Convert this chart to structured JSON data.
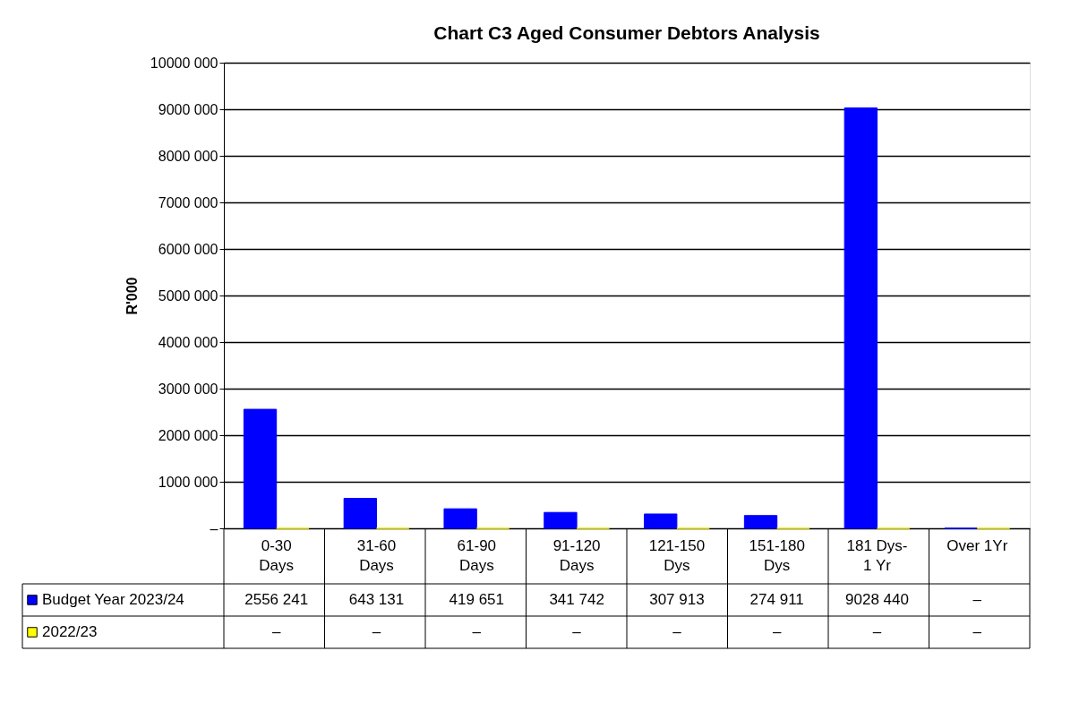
{
  "chart_data": {
    "type": "bar",
    "title": "Chart C3 Aged Consumer Debtors Analysis",
    "ylabel": "R'000",
    "categories": [
      "0-30\nDays",
      "31-60\nDays",
      "61-90\nDays",
      "91-120\nDays",
      "121-150\nDys",
      "151-180\nDys",
      "181 Dys-\n1 Yr",
      "Over 1Yr"
    ],
    "series": [
      {
        "name": "Budget Year 2023/24",
        "color": "#0000ff",
        "values": [
          2556241,
          643131,
          419651,
          341742,
          307913,
          274911,
          9028440,
          0
        ],
        "value_labels": [
          "2556 241",
          "643 131",
          "419 651",
          "341 742",
          "307 913",
          "274 911",
          "9028 440",
          "–"
        ]
      },
      {
        "name": "2022/23",
        "color": "#ffff00",
        "values": [
          0,
          0,
          0,
          0,
          0,
          0,
          0,
          0
        ],
        "value_labels": [
          "–",
          "–",
          "–",
          "–",
          "–",
          "–",
          "–",
          "–"
        ]
      }
    ],
    "ylim": [
      0,
      10000000
    ],
    "yticks": [
      {
        "value": 0,
        "label": "–"
      },
      {
        "value": 1000000,
        "label": "1000 000"
      },
      {
        "value": 2000000,
        "label": "2000 000"
      },
      {
        "value": 3000000,
        "label": "3000 000"
      },
      {
        "value": 4000000,
        "label": "4000 000"
      },
      {
        "value": 5000000,
        "label": "5000 000"
      },
      {
        "value": 6000000,
        "label": "6000 000"
      },
      {
        "value": 7000000,
        "label": "7000 000"
      },
      {
        "value": 8000000,
        "label": "8000 000"
      },
      {
        "value": 9000000,
        "label": "9000 000"
      },
      {
        "value": 10000000,
        "label": "10000 000"
      }
    ],
    "grid": "y",
    "legend": "bottom"
  }
}
